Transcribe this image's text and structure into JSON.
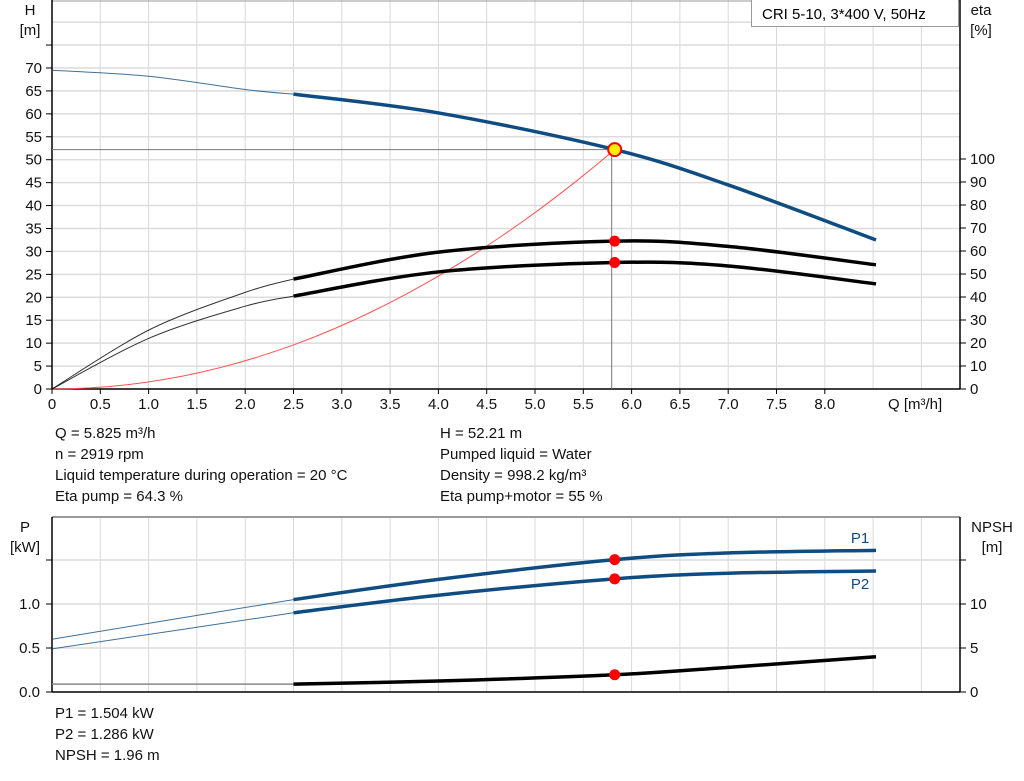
{
  "title": "CRI 5-10, 3*400 V, 50Hz",
  "chart_data": [
    {
      "type": "line",
      "xlabel": "Q [m³/h]",
      "ylabel": "H\n[m]",
      "ylabel_line1": "H",
      "ylabel_line2": "[m]",
      "y2label_line1": "eta",
      "y2label_line2": "[%]",
      "xlim": [
        0,
        9.4
      ],
      "ylim": [
        0,
        85
      ],
      "y2lim": [
        0,
        100
      ],
      "x_ticks": [
        "0",
        "0.5",
        "1.0",
        "1.5",
        "2.0",
        "2.5",
        "3.0",
        "3.5",
        "4.0",
        "4.5",
        "5.0",
        "5.5",
        "6.0",
        "6.5",
        "7.0",
        "7.5",
        "8.0"
      ],
      "y_ticks": [
        "0",
        "5",
        "10",
        "15",
        "20",
        "25",
        "30",
        "35",
        "40",
        "45",
        "50",
        "55",
        "60",
        "65",
        "70"
      ],
      "y2_ticks": [
        "0",
        "10",
        "20",
        "30",
        "40",
        "50",
        "60",
        "70",
        "80",
        "90",
        "100"
      ],
      "grid": true,
      "series": [
        {
          "id": "H",
          "axis": "left",
          "color": "#0f4c81",
          "points": [
            [
              0,
              69.5
            ],
            [
              1,
              68.2
            ],
            [
              2,
              65.3
            ],
            [
              2.5,
              64.3
            ],
            [
              4,
              60.2
            ],
            [
              5.825,
              52.21
            ],
            [
              7,
              44.5
            ],
            [
              8.53,
              32.5
            ]
          ]
        },
        {
          "id": "eta_pump",
          "axis": "right",
          "color": "#000000",
          "points": [
            [
              0,
              0
            ],
            [
              1,
              25.6
            ],
            [
              2,
              42
            ],
            [
              2.5,
              47.8
            ],
            [
              4,
              59.5
            ],
            [
              5.825,
              64.3
            ],
            [
              7,
              62
            ],
            [
              8.53,
              54
            ]
          ]
        },
        {
          "id": "eta_pump_motor",
          "axis": "right",
          "color": "#000000",
          "points": [
            [
              0,
              0
            ],
            [
              1,
              22
            ],
            [
              2,
              36
            ],
            [
              2.5,
              40.4
            ],
            [
              4,
              50.9
            ],
            [
              5.825,
              55
            ],
            [
              7,
              53.5
            ],
            [
              8.53,
              45.7
            ]
          ]
        },
        {
          "id": "system_curve",
          "axis": "left",
          "color": "#ff5050",
          "type": "quadratic",
          "points": [
            [
              0,
              0
            ],
            [
              5.825,
              52.21
            ]
          ]
        }
      ],
      "thin_until_q": 2.5,
      "duty_point": {
        "q": 5.825,
        "h": 52.21,
        "eta_pump": 64.3,
        "eta_pump_motor": 55
      }
    },
    {
      "type": "line",
      "ylabel_line1": "P",
      "ylabel_line2": "[kW]",
      "y2label_line1": "NPSH",
      "y2label_line2": "[m]",
      "ylim": [
        0,
        2.0
      ],
      "y2lim": [
        0,
        20
      ],
      "y_ticks": [
        "0.0",
        "0.5",
        "1.0"
      ],
      "y2_ticks": [
        "0",
        "5",
        "10"
      ],
      "grid": true,
      "series": [
        {
          "id": "P1",
          "name": "P1",
          "axis": "left",
          "color": "#0f4c81",
          "points": [
            [
              0,
              0.6
            ],
            [
              2.5,
              1.05
            ],
            [
              4,
              1.28
            ],
            [
              5.825,
              1.504
            ],
            [
              7,
              1.58
            ],
            [
              8.53,
              1.61
            ]
          ]
        },
        {
          "id": "P2",
          "name": "P2",
          "axis": "left",
          "color": "#0f4c81",
          "points": [
            [
              0,
              0.49
            ],
            [
              2.5,
              0.9
            ],
            [
              4,
              1.1
            ],
            [
              5.825,
              1.286
            ],
            [
              7,
              1.35
            ],
            [
              8.53,
              1.375
            ]
          ]
        },
        {
          "id": "NPSH",
          "axis": "right",
          "color": "#000000",
          "points": [
            [
              0,
              0.9
            ],
            [
              2.5,
              0.9
            ],
            [
              4,
              1.25
            ],
            [
              5.825,
              1.96
            ],
            [
              7,
              2.8
            ],
            [
              8.53,
              4.0
            ]
          ]
        }
      ],
      "duty_point": {
        "q": 5.825,
        "p1": 1.504,
        "p2": 1.286,
        "npsh": 1.96
      }
    }
  ],
  "info": {
    "left": [
      "Q = 5.825 m³/h",
      "n = 2919 rpm",
      "Liquid temperature during operation = 20 °C",
      "Eta pump = 64.3 %"
    ],
    "right": [
      "H = 52.21 m",
      "Pumped liquid = Water",
      "Density = 998.2 kg/m³",
      "Eta pump+motor = 55 %"
    ],
    "bottom": [
      "P1 = 1.504 kW",
      "P2 = 1.286 kW",
      "NPSH = 1.96 m"
    ]
  }
}
